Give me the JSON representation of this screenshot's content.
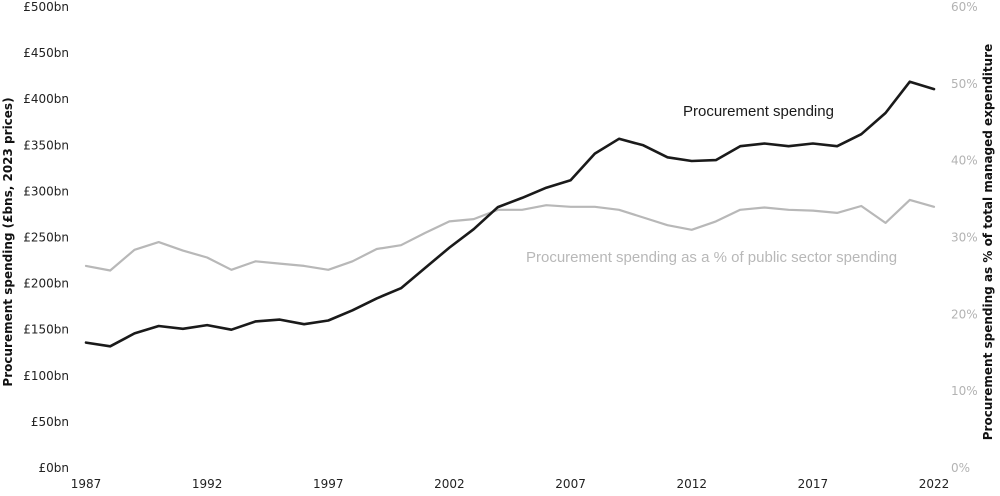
{
  "chart_data": {
    "type": "line",
    "title": "",
    "xlabel": "",
    "ylabel": "Procurement spending (£bns, 2023 prices)",
    "ylabel_right": "Procurement spending as % of total managed expenditure",
    "x": [
      1987,
      1988,
      1989,
      1990,
      1991,
      1992,
      1993,
      1994,
      1995,
      1996,
      1997,
      1998,
      1999,
      2000,
      2001,
      2002,
      2003,
      2004,
      2005,
      2006,
      2007,
      2008,
      2009,
      2010,
      2011,
      2012,
      2013,
      2014,
      2015,
      2016,
      2017,
      2018,
      2019,
      2020,
      2021,
      2022
    ],
    "x_ticks": [
      "1987",
      "1992",
      "1997",
      "2002",
      "2007",
      "2012",
      "2017",
      "2022"
    ],
    "xlim": [
      1987,
      2022
    ],
    "ylim": [
      0,
      500
    ],
    "ylim_right": [
      0,
      60
    ],
    "y_ticks_left": [
      "£0bn",
      "£50bn",
      "£100bn",
      "£150bn",
      "£200bn",
      "£250bn",
      "£300bn",
      "£350bn",
      "£400bn",
      "£450bn",
      "£500bn"
    ],
    "y_ticks_right": [
      "0%",
      "10%",
      "20%",
      "30%",
      "40%",
      "50%",
      "60%"
    ],
    "grid": false,
    "series": [
      {
        "name": "Procurement spending",
        "axis": "left",
        "color": "#1a1a1a",
        "values": [
          136,
          132,
          146,
          154,
          151,
          155,
          150,
          159,
          161,
          156,
          160,
          171,
          184,
          195,
          217,
          239,
          259,
          283,
          293,
          304,
          312,
          341,
          357,
          350,
          337,
          333,
          334,
          349,
          352,
          349,
          352,
          349,
          362,
          385,
          419,
          411
        ]
      },
      {
        "name": "Procurement spending as a % of public sector spending",
        "axis": "right",
        "color": "#b8b8b8",
        "values": [
          26.3,
          25.7,
          28.4,
          29.4,
          28.3,
          27.4,
          25.8,
          26.9,
          26.6,
          26.3,
          25.8,
          26.9,
          28.5,
          29.0,
          30.6,
          32.1,
          32.4,
          33.6,
          33.6,
          34.2,
          34.0,
          34.0,
          33.6,
          32.6,
          31.6,
          31.0,
          32.1,
          33.6,
          33.9,
          33.6,
          33.5,
          33.2,
          34.1,
          31.9,
          34.9,
          34.0
        ]
      }
    ]
  }
}
